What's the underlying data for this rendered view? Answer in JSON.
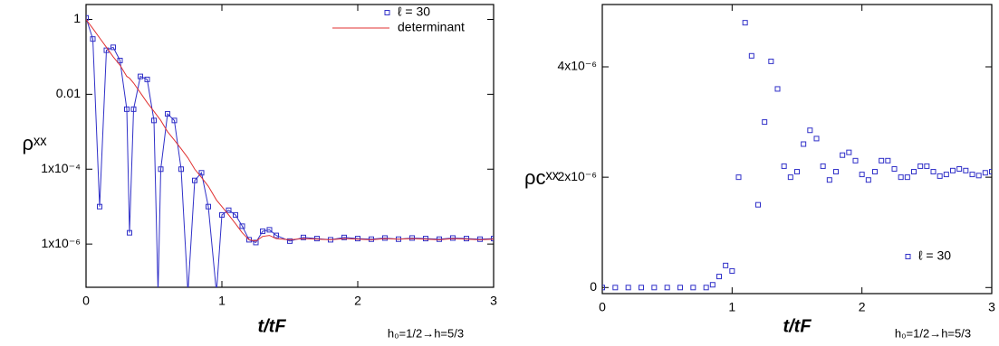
{
  "chart_data": [
    {
      "type": "line",
      "xlabel": "t/tF",
      "ylabel": "ρˣˣ",
      "annotation": "h₀=1/2→h=5/3",
      "yscale": "log",
      "legend": "upper right",
      "xlim": [
        0,
        3
      ],
      "xticks": [
        0,
        1,
        2,
        3
      ],
      "ylim": [
        7e-08,
        2.5
      ],
      "yticks": [
        1,
        0.01,
        {
          "value": 0.0001,
          "label": "1x10⁻⁴"
        },
        {
          "value": 1e-06,
          "label": "1x10⁻⁶"
        }
      ],
      "x": [
        0,
        0.05,
        0.1,
        0.15,
        0.2,
        0.25,
        0.3,
        0.32,
        0.35,
        0.4,
        0.45,
        0.5,
        0.53,
        0.55,
        0.6,
        0.65,
        0.7,
        0.75,
        0.8,
        0.85,
        0.9,
        0.96,
        1.0,
        1.05,
        1.1,
        1.15,
        1.2,
        1.25,
        1.3,
        1.35,
        1.4,
        1.5,
        1.6,
        1.7,
        1.8,
        1.9,
        2.0,
        2.1,
        2.2,
        2.3,
        2.4,
        2.5,
        2.6,
        2.7,
        2.8,
        2.9,
        3.0
      ],
      "series": [
        {
          "name": "ℓ = 30",
          "color": "#3030c8",
          "marker": "square",
          "line": true,
          "values": [
            1.1,
            0.3,
            1e-05,
            0.15,
            0.18,
            0.08,
            0.004,
            2e-06,
            0.004,
            0.03,
            0.025,
            0.002,
            5e-08,
            0.0001,
            0.003,
            0.002,
            0.0001,
            5e-08,
            5e-05,
            8e-05,
            1e-05,
            5e-08,
            6e-06,
            8e-06,
            6e-06,
            3e-06,
            1.3e-06,
            1.1e-06,
            2.2e-06,
            2.4e-06,
            1.7e-06,
            1.2e-06,
            1.5e-06,
            1.4e-06,
            1.3e-06,
            1.5e-06,
            1.4e-06,
            1.35e-06,
            1.45e-06,
            1.35e-06,
            1.45e-06,
            1.4e-06,
            1.35e-06,
            1.45e-06,
            1.4e-06,
            1.35e-06,
            1.4e-06
          ]
        },
        {
          "name": "determinant",
          "color": "#e03030",
          "marker": "none",
          "line": true,
          "values": [
            1,
            0.57,
            0.32,
            0.18,
            0.1,
            0.06,
            0.03,
            0.027,
            0.02,
            0.011,
            0.006,
            0.0035,
            0.0025,
            0.002,
            0.001,
            0.0006,
            0.00035,
            0.0002,
            0.0001,
            6e-05,
            3.5e-05,
            1.5e-05,
            1e-05,
            6e-06,
            3.5e-06,
            2e-06,
            1.3e-06,
            1.2e-06,
            1.6e-06,
            1.7e-06,
            1.4e-06,
            1.3e-06,
            1.4e-06,
            1.35e-06,
            1.3e-06,
            1.4e-06,
            1.35e-06,
            1.3e-06,
            1.4e-06,
            1.35e-06,
            1.4e-06,
            1.35e-06,
            1.3e-06,
            1.4e-06,
            1.35e-06,
            1.3e-06,
            1.35e-06
          ]
        }
      ]
    },
    {
      "type": "scatter",
      "xlabel": "t/tF",
      "ylabel": "ρcˣˣ",
      "annotation": "h₀=1/2→h=5/3",
      "yscale": "linear",
      "legend": "lower right",
      "xlim": [
        0,
        3
      ],
      "xticks": [
        0,
        1,
        2,
        3
      ],
      "ylim": [
        -1.1e-07,
        5.13e-06
      ],
      "yticks": [
        0,
        {
          "value": 2e-06,
          "label": "2x10⁻⁶"
        },
        {
          "value": 4e-06,
          "label": "4x10⁻⁶"
        }
      ],
      "x": [
        0,
        0.1,
        0.2,
        0.3,
        0.4,
        0.5,
        0.6,
        0.7,
        0.8,
        0.85,
        0.9,
        0.95,
        1.0,
        1.05,
        1.1,
        1.15,
        1.2,
        1.25,
        1.3,
        1.35,
        1.4,
        1.45,
        1.5,
        1.55,
        1.6,
        1.65,
        1.7,
        1.75,
        1.8,
        1.85,
        1.9,
        1.95,
        2.0,
        2.05,
        2.1,
        2.15,
        2.2,
        2.25,
        2.3,
        2.35,
        2.4,
        2.45,
        2.5,
        2.55,
        2.6,
        2.65,
        2.7,
        2.75,
        2.8,
        2.85,
        2.9,
        2.95,
        3.0
      ],
      "series": [
        {
          "name": "ℓ = 30",
          "color": "#3030c8",
          "marker": "square",
          "line": false,
          "values": [
            0,
            0,
            0,
            0,
            0,
            0,
            0,
            0,
            0,
            5e-08,
            2e-07,
            4e-07,
            3e-07,
            2e-06,
            4.8e-06,
            4.2e-06,
            1.5e-06,
            3e-06,
            4.1e-06,
            3.6e-06,
            2.2e-06,
            2e-06,
            2.1e-06,
            2.6e-06,
            2.85e-06,
            2.7e-06,
            2.2e-06,
            1.95e-06,
            2.1e-06,
            2.4e-06,
            2.45e-06,
            2.3e-06,
            2.05e-06,
            1.95e-06,
            2.1e-06,
            2.3e-06,
            2.3e-06,
            2.15e-06,
            2e-06,
            2e-06,
            2.1e-06,
            2.2e-06,
            2.2e-06,
            2.1e-06,
            2.02e-06,
            2.05e-06,
            2.12e-06,
            2.15e-06,
            2.12e-06,
            2.05e-06,
            2.03e-06,
            2.08e-06,
            2.1e-06
          ]
        }
      ]
    }
  ]
}
